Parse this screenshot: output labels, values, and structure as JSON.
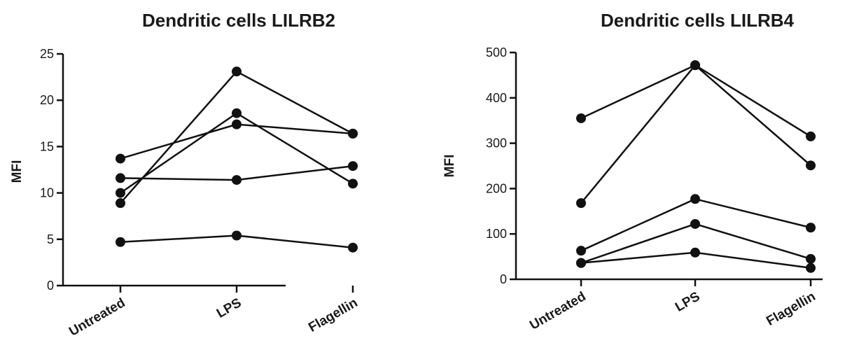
{
  "chart_data": [
    {
      "type": "line",
      "title": "Dendritic cells LILRB2",
      "ylabel": "MFI",
      "xlabel": "",
      "categories": [
        "Untreated",
        "LPS",
        "Flagellin"
      ],
      "ylim": [
        0,
        25
      ],
      "yticks": [
        0,
        5,
        10,
        15,
        20,
        25
      ],
      "series": [
        {
          "values": [
            8.9,
            23.1,
            16.4
          ]
        },
        {
          "values": [
            13.7,
            17.4,
            16.4
          ]
        },
        {
          "values": [
            10.0,
            18.6,
            11.0
          ]
        },
        {
          "values": [
            11.6,
            11.4,
            12.9
          ]
        },
        {
          "values": [
            4.7,
            5.4,
            4.1
          ]
        }
      ]
    },
    {
      "type": "line",
      "title": "Dendritic cells LILRB4",
      "ylabel": "MFI",
      "xlabel": "",
      "categories": [
        "Untreated",
        "LPS",
        "Flagellin"
      ],
      "ylim": [
        0,
        500
      ],
      "yticks": [
        0,
        100,
        200,
        300,
        400,
        500
      ],
      "series": [
        {
          "values": [
            355,
            472,
            315
          ]
        },
        {
          "values": [
            168,
            472,
            251
          ]
        },
        {
          "values": [
            63,
            177,
            114
          ]
        },
        {
          "values": [
            36,
            122,
            45
          ]
        },
        {
          "values": [
            36,
            59,
            25
          ]
        }
      ]
    }
  ]
}
